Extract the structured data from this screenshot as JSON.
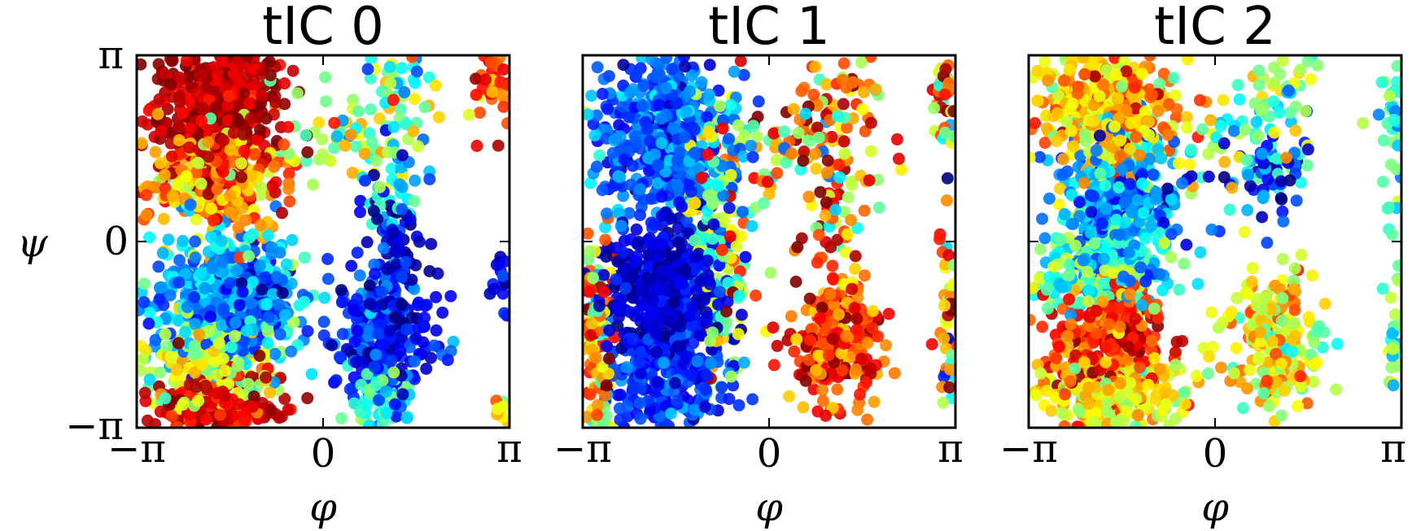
{
  "figure": {
    "ylabel": "ψ",
    "y_ticklabels": [
      "π",
      "0",
      "−π"
    ],
    "x_ticklabels": [
      "−π",
      "0",
      "π"
    ],
    "xlabel": "φ"
  },
  "chart_data": [
    {
      "type": "scatter",
      "title": "tIC 0",
      "xlabel": "φ",
      "ylabel": "ψ",
      "xlim": [
        -3.1416,
        3.1416
      ],
      "ylim": [
        -3.1416,
        3.1416
      ],
      "xticks": [
        "−π",
        "0",
        "π"
      ],
      "yticks": [
        "π",
        "0",
        "−π"
      ],
      "colormap": "jet",
      "clusters": [
        {
          "phi": -1.8,
          "psi": 2.3,
          "sphi": 0.55,
          "spsi": 0.7,
          "n": 520,
          "cval": 0.95,
          "cspread": 0.05
        },
        {
          "phi": -1.8,
          "psi": 1.0,
          "sphi": 0.55,
          "spsi": 0.5,
          "n": 260,
          "cval": 0.72,
          "cspread": 0.1
        },
        {
          "phi": -1.7,
          "psi": -0.9,
          "sphi": 0.6,
          "spsi": 0.6,
          "n": 420,
          "cval": 0.3,
          "cspread": 0.08
        },
        {
          "phi": -1.2,
          "psi": -1.0,
          "sphi": 0.35,
          "spsi": 0.35,
          "n": 120,
          "cval": 0.15,
          "cspread": 0.07
        },
        {
          "phi": -1.8,
          "psi": -2.0,
          "sphi": 0.55,
          "spsi": 0.45,
          "n": 220,
          "cval": 0.58,
          "cspread": 0.08
        },
        {
          "phi": -1.8,
          "psi": -2.8,
          "sphi": 0.55,
          "spsi": 0.3,
          "n": 220,
          "cval": 0.92,
          "cspread": 0.06
        },
        {
          "phi": 1.0,
          "psi": -1.6,
          "sphi": 0.45,
          "spsi": 0.55,
          "n": 240,
          "cval": 0.15,
          "cspread": 0.08
        },
        {
          "phi": 1.2,
          "psi": -0.5,
          "sphi": 0.2,
          "spsi": 0.55,
          "n": 60,
          "cval": 0.05,
          "cspread": 0.05
        },
        {
          "phi": 1.1,
          "psi": 0.9,
          "sphi": 0.3,
          "spsi": 0.6,
          "n": 50,
          "cval": 0.3,
          "cspread": 0.1
        },
        {
          "phi": 0.5,
          "psi": 1.6,
          "sphi": 0.7,
          "spsi": 0.45,
          "n": 70,
          "cval": 0.55,
          "cspread": 0.12
        },
        {
          "phi": 1.2,
          "psi": 2.7,
          "sphi": 0.3,
          "spsi": 0.35,
          "n": 40,
          "cval": 0.5,
          "cspread": 0.12
        },
        {
          "phi": 1.0,
          "psi": -2.7,
          "sphi": 0.25,
          "spsi": 0.35,
          "n": 60,
          "cval": 0.4,
          "cspread": 0.08
        },
        {
          "phi": 2.95,
          "psi": 2.6,
          "sphi": 0.15,
          "spsi": 0.4,
          "n": 40,
          "cval": 0.85,
          "cspread": 0.08
        },
        {
          "phi": 3.0,
          "psi": -0.7,
          "sphi": 0.1,
          "spsi": 0.3,
          "n": 15,
          "cval": 0.1,
          "cspread": 0.05
        },
        {
          "phi": 3.0,
          "psi": -2.9,
          "sphi": 0.1,
          "spsi": 0.2,
          "n": 10,
          "cval": 0.6,
          "cspread": 0.1
        }
      ]
    },
    {
      "type": "scatter",
      "title": "tIC 1",
      "xlabel": "φ",
      "ylabel": "ψ",
      "xlim": [
        -3.1416,
        3.1416
      ],
      "ylim": [
        -3.1416,
        3.1416
      ],
      "xticks": [
        "−π",
        "0",
        "π"
      ],
      "yticks": [
        "π",
        "0",
        "−π"
      ],
      "colormap": "jet",
      "clusters": [
        {
          "phi": -1.8,
          "psi": 1.8,
          "sphi": 0.55,
          "spsi": 0.8,
          "n": 480,
          "cval": 0.22,
          "cspread": 0.07
        },
        {
          "phi": -1.8,
          "psi": -0.9,
          "sphi": 0.5,
          "spsi": 0.6,
          "n": 420,
          "cval": 0.08,
          "cspread": 0.05
        },
        {
          "phi": -1.8,
          "psi": -2.4,
          "sphi": 0.5,
          "spsi": 0.5,
          "n": 220,
          "cval": 0.18,
          "cspread": 0.06
        },
        {
          "phi": -0.8,
          "psi": 0.3,
          "sphi": 0.3,
          "spsi": 1.2,
          "n": 200,
          "cval": 0.55,
          "cspread": 0.2
        },
        {
          "phi": -2.9,
          "psi": -1.6,
          "sphi": 0.15,
          "spsi": 1.0,
          "n": 120,
          "cval": 0.7,
          "cspread": 0.2
        },
        {
          "phi": 1.1,
          "psi": -1.7,
          "sphi": 0.4,
          "spsi": 0.5,
          "n": 260,
          "cval": 0.85,
          "cspread": 0.1
        },
        {
          "phi": 0.5,
          "psi": 1.6,
          "sphi": 0.7,
          "spsi": 0.45,
          "n": 80,
          "cval": 0.75,
          "cspread": 0.2
        },
        {
          "phi": 1.1,
          "psi": 0.6,
          "sphi": 0.3,
          "spsi": 0.7,
          "n": 60,
          "cval": 0.7,
          "cspread": 0.2
        },
        {
          "phi": 1.2,
          "psi": 2.6,
          "sphi": 0.35,
          "spsi": 0.35,
          "n": 40,
          "cval": 0.8,
          "cspread": 0.15
        },
        {
          "phi": 3.0,
          "psi": 2.3,
          "sphi": 0.12,
          "spsi": 0.6,
          "n": 50,
          "cval": 0.75,
          "cspread": 0.2
        },
        {
          "phi": 3.0,
          "psi": -1.2,
          "sphi": 0.1,
          "spsi": 1.0,
          "n": 40,
          "cval": 0.65,
          "cspread": 0.25
        }
      ]
    },
    {
      "type": "scatter",
      "title": "tIC 2",
      "xlabel": "φ",
      "ylabel": "ψ",
      "xlim": [
        -3.1416,
        3.1416
      ],
      "ylim": [
        -3.1416,
        3.1416
      ],
      "xticks": [
        "−π",
        "0",
        "π"
      ],
      "yticks": [
        "π",
        "0",
        "−π"
      ],
      "colormap": "jet",
      "clusters": [
        {
          "phi": -1.8,
          "psi": 2.3,
          "sphi": 0.6,
          "spsi": 0.6,
          "n": 420,
          "cval": 0.68,
          "cspread": 0.1
        },
        {
          "phi": -1.6,
          "psi": 0.6,
          "sphi": 0.55,
          "spsi": 0.6,
          "n": 360,
          "cval": 0.28,
          "cspread": 0.1
        },
        {
          "phi": -1.9,
          "psi": -0.5,
          "sphi": 0.6,
          "spsi": 0.4,
          "n": 200,
          "cval": 0.45,
          "cspread": 0.12
        },
        {
          "phi": -1.8,
          "psi": -1.6,
          "sphi": 0.5,
          "spsi": 0.45,
          "n": 280,
          "cval": 0.85,
          "cspread": 0.08
        },
        {
          "phi": -1.8,
          "psi": -2.6,
          "sphi": 0.6,
          "spsi": 0.4,
          "n": 260,
          "cval": 0.62,
          "cspread": 0.1
        },
        {
          "phi": 1.0,
          "psi": -1.7,
          "sphi": 0.4,
          "spsi": 0.55,
          "n": 220,
          "cval": 0.62,
          "cspread": 0.12
        },
        {
          "phi": 0.9,
          "psi": 1.1,
          "sphi": 0.35,
          "spsi": 0.4,
          "n": 50,
          "cval": 0.18,
          "cspread": 0.1
        },
        {
          "phi": 0.5,
          "psi": 1.6,
          "sphi": 0.7,
          "spsi": 0.45,
          "n": 50,
          "cval": 0.45,
          "cspread": 0.12
        },
        {
          "phi": 1.1,
          "psi": 2.6,
          "sphi": 0.35,
          "spsi": 0.35,
          "n": 40,
          "cval": 0.5,
          "cspread": 0.12
        },
        {
          "phi": 3.0,
          "psi": 1.8,
          "sphi": 0.1,
          "spsi": 0.8,
          "n": 40,
          "cval": 0.42,
          "cspread": 0.1
        },
        {
          "phi": 3.0,
          "psi": -1.5,
          "sphi": 0.1,
          "spsi": 1.0,
          "n": 25,
          "cval": 0.45,
          "cspread": 0.1
        }
      ]
    }
  ]
}
